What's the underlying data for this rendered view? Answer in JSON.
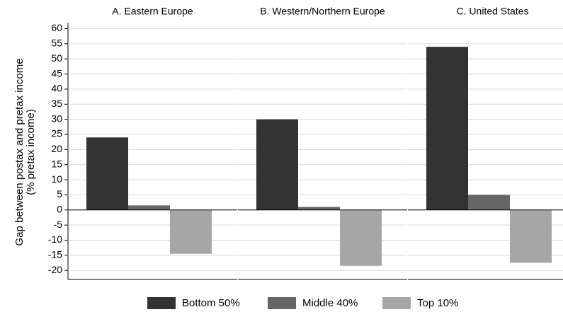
{
  "chart_data": {
    "type": "bar",
    "layout": "facets",
    "categories": [
      "A. Eastern Europe",
      "B. Western/Northern Europe",
      "C. United States"
    ],
    "ylabel": [
      "Gap between postax and pretax income",
      "(% pretax income)"
    ],
    "series": [
      {
        "name": "Bottom 50%",
        "color": "#333333",
        "values": [
          24,
          30,
          54
        ]
      },
      {
        "name": "Middle 40%",
        "color": "#666666",
        "values": [
          1.5,
          1,
          5
        ]
      },
      {
        "name": "Top 10%",
        "color": "#a6a6a6",
        "values": [
          -14.5,
          -18.5,
          -17.5
        ]
      }
    ],
    "ylim": [
      -23,
      62
    ],
    "yticks": [
      -20,
      -15,
      -10,
      -5,
      0,
      5,
      10,
      15,
      20,
      25,
      30,
      35,
      40,
      45,
      50,
      55,
      60
    ],
    "grid": true
  }
}
